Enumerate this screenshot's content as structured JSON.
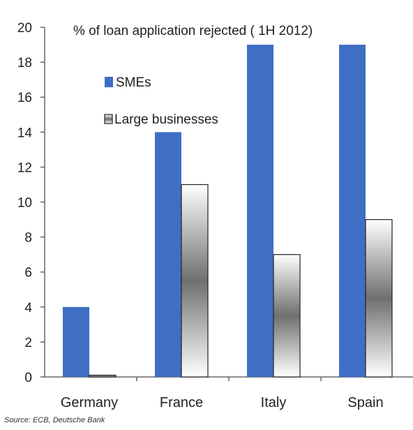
{
  "chart_data": {
    "type": "bar",
    "title": "% of loan application rejected ( 1H 2012)",
    "categories": [
      "Germany",
      "France",
      "Italy",
      "Spain"
    ],
    "series": [
      {
        "name": "SMEs",
        "values": [
          4,
          14,
          19,
          19
        ],
        "color": "#3f6fc4"
      },
      {
        "name": "Large businesses",
        "values": [
          0.1,
          11,
          7,
          9
        ],
        "color": "#7f7f7f"
      }
    ],
    "ylim": [
      0,
      20
    ],
    "yticks": [
      "0",
      "2",
      "4",
      "6",
      "8",
      "10",
      "12",
      "14",
      "16",
      "18",
      "20"
    ],
    "xlabel": "",
    "ylabel": "",
    "grid": false,
    "legend_placement": "top-left"
  },
  "source": "Source: ECB, Deutsche Bank"
}
